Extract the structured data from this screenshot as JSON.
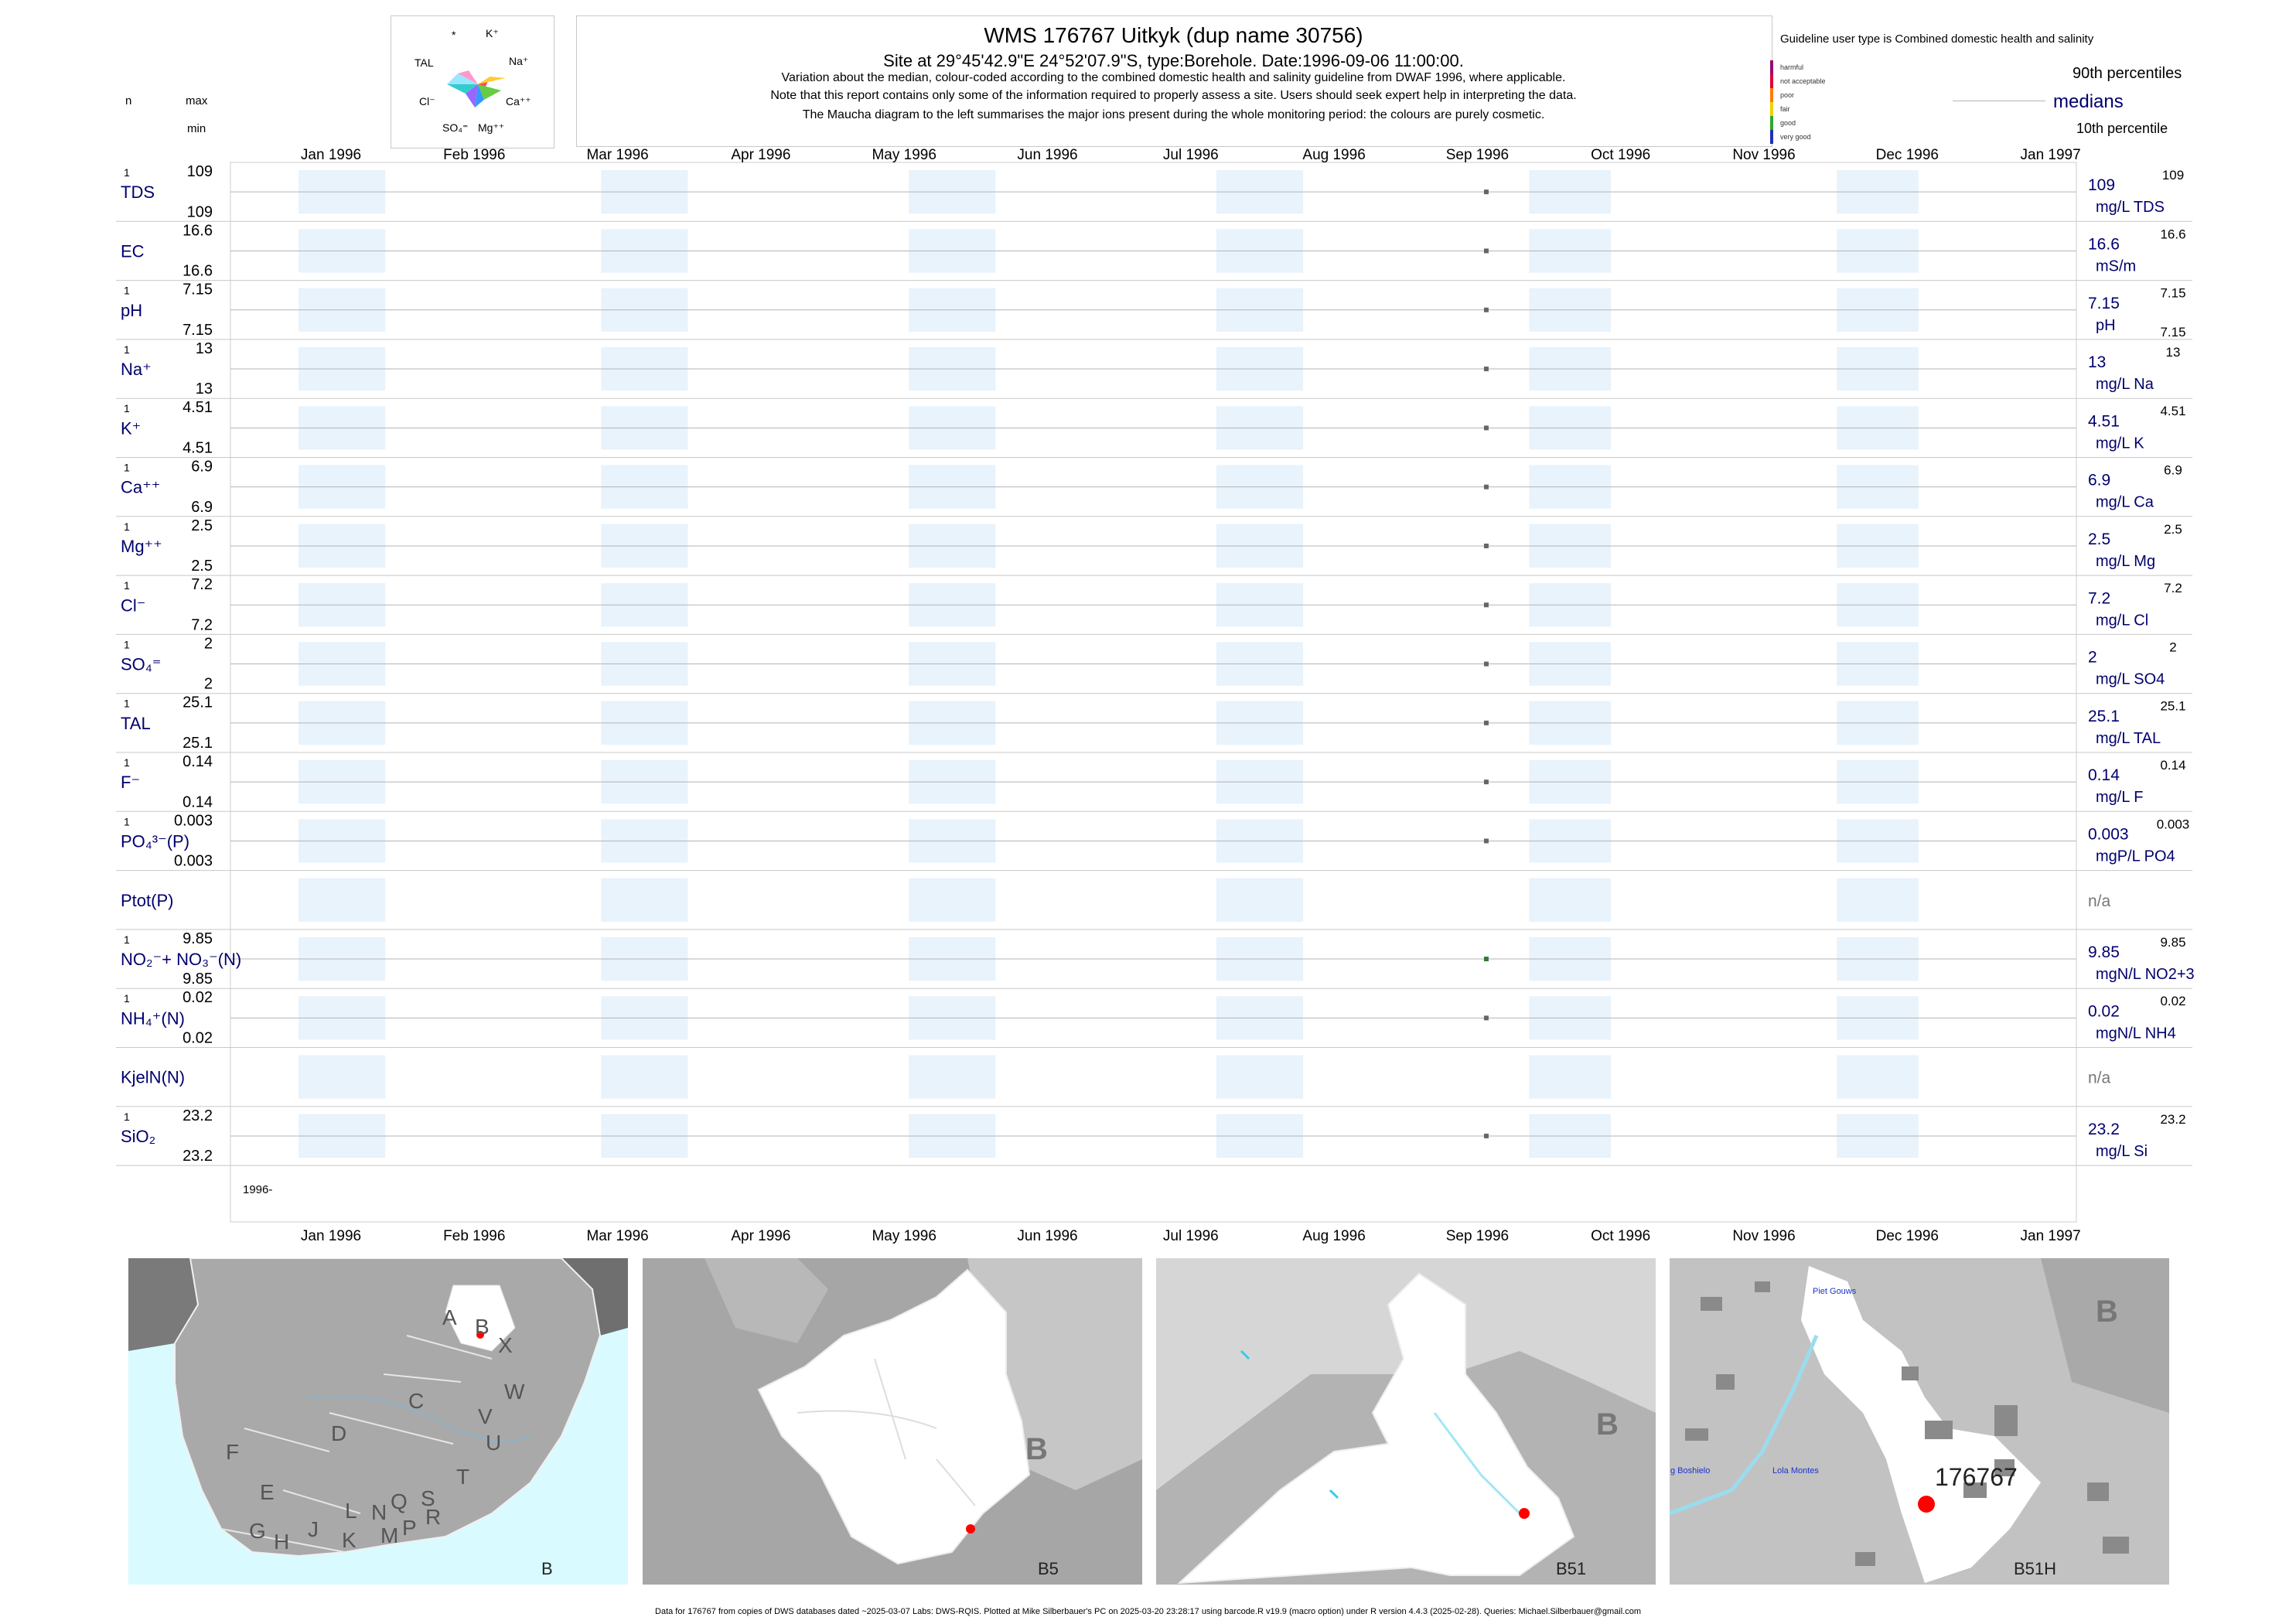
{
  "header": {
    "title": "WMS 176767  Uitkyk (dup name 30756)",
    "subtitle": "Site at 29°45'42.9\"E 24°52'07.9\"S, type:Borehole. Date:1996-09-06 11:00:00.",
    "note1": "Variation about the median,  colour-coded according to the combined domestic health and salinity guideline from DWAF 1996, where applicable.",
    "note2": "Note that this report contains only some of the information required to properly assess a site. Users should seek expert help in interpreting the data.",
    "note3": "The Maucha diagram to the left summarises the major ions present during the whole monitoring period: the colours are purely cosmetic.",
    "col_n": "n",
    "col_max": "max",
    "col_min": "min"
  },
  "maucha": {
    "labels": [
      "*",
      "K⁺",
      "TAL",
      "Na⁺",
      "Cl⁻",
      "Ca⁺⁺",
      "SO₄⁼",
      "Mg⁺⁺"
    ]
  },
  "legend": {
    "title": "Guideline user type is Combined domestic health and salinity",
    "levels": [
      "harmful",
      "not acceptable",
      "poor",
      "fair",
      "good",
      "very good"
    ],
    "level_colors": [
      "#9b0d6e",
      "#e0003a",
      "#ff7a00",
      "#f5d000",
      "#2ea82e",
      "#1f2fb4"
    ],
    "p90": "90th percentiles",
    "medians": "medians",
    "p10": "10th percentile"
  },
  "axis": {
    "months": [
      "Jan 1996",
      "Feb 1996",
      "Mar 1996",
      "Apr 1996",
      "May 1996",
      "Jun 1996",
      "Jul 1996",
      "Aug 1996",
      "Sep 1996",
      "Oct 1996",
      "Nov 1996",
      "Dec 1996",
      "Jan 1997"
    ],
    "year_label": "1996-"
  },
  "chart_data": {
    "type": "scatter",
    "x_range": [
      "1996-01-01",
      "1997-01-01"
    ],
    "sample_date": "1996-09-06",
    "variables": [
      {
        "name": "TDS",
        "n": "1",
        "max": "109",
        "min": "109",
        "median": "109",
        "unit": "mg/L TDS",
        "p90": "109",
        "p10": "",
        "has_data": true,
        "dot_color": "#666666"
      },
      {
        "name": "EC",
        "n": "",
        "max": "16.6",
        "min": "16.6",
        "median": "16.6",
        "unit": "mS/m",
        "p90": "16.6",
        "p10": "",
        "has_data": true,
        "dot_color": "#666666"
      },
      {
        "name": "pH",
        "n": "1",
        "max": "7.15",
        "min": "7.15",
        "median": "7.15",
        "unit": "pH",
        "p90": "7.15",
        "p10": "7.15",
        "has_data": true,
        "dot_color": "#666666"
      },
      {
        "name": "Na⁺",
        "n": "1",
        "max": "13",
        "min": "13",
        "median": "13",
        "unit": "mg/L Na",
        "p90": "13",
        "p10": "",
        "has_data": true,
        "dot_color": "#666666"
      },
      {
        "name": "K⁺",
        "n": "1",
        "max": "4.51",
        "min": "4.51",
        "median": "4.51",
        "unit": "mg/L K",
        "p90": "4.51",
        "p10": "",
        "has_data": true,
        "dot_color": "#666666"
      },
      {
        "name": "Ca⁺⁺",
        "n": "1",
        "max": "6.9",
        "min": "6.9",
        "median": "6.9",
        "unit": "mg/L Ca",
        "p90": "6.9",
        "p10": "",
        "has_data": true,
        "dot_color": "#666666"
      },
      {
        "name": "Mg⁺⁺",
        "n": "1",
        "max": "2.5",
        "min": "2.5",
        "median": "2.5",
        "unit": "mg/L Mg",
        "p90": "2.5",
        "p10": "",
        "has_data": true,
        "dot_color": "#666666"
      },
      {
        "name": "Cl⁻",
        "n": "1",
        "max": "7.2",
        "min": "7.2",
        "median": "7.2",
        "unit": "mg/L Cl",
        "p90": "7.2",
        "p10": "",
        "has_data": true,
        "dot_color": "#666666"
      },
      {
        "name": "SO₄⁼",
        "n": "1",
        "max": "2",
        "min": "2",
        "median": "2",
        "unit": "mg/L SO4",
        "p90": "2",
        "p10": "",
        "has_data": true,
        "dot_color": "#666666"
      },
      {
        "name": "TAL",
        "n": "1",
        "max": "25.1",
        "min": "25.1",
        "median": "25.1",
        "unit": "mg/L TAL",
        "p90": "25.1",
        "p10": "",
        "has_data": true,
        "dot_color": "#666666"
      },
      {
        "name": "F⁻",
        "n": "1",
        "max": "0.14",
        "min": "0.14",
        "median": "0.14",
        "unit": "mg/L F",
        "p90": "0.14",
        "p10": "",
        "has_data": true,
        "dot_color": "#666666"
      },
      {
        "name": "PO₄³⁻(P)",
        "n": "1",
        "max": "0.003",
        "min": "0.003",
        "median": "0.003",
        "unit": "mgP/L PO4",
        "p90": "0.003",
        "p10": "",
        "has_data": true,
        "dot_color": "#666666"
      },
      {
        "name": "Ptot(P)",
        "n": "",
        "max": "",
        "min": "",
        "median": "n/a",
        "unit": "",
        "p90": "",
        "p10": "",
        "has_data": false,
        "dot_color": "#666666"
      },
      {
        "name": "NO₂⁻+ NO₃⁻(N)",
        "n": "1",
        "max": "9.85",
        "min": "9.85",
        "median": "9.85",
        "unit": "mgN/L NO2+3",
        "p90": "9.85",
        "p10": "",
        "has_data": true,
        "dot_color": "#2e7d32"
      },
      {
        "name": "NH₄⁺(N)",
        "n": "1",
        "max": "0.02",
        "min": "0.02",
        "median": "0.02",
        "unit": "mgN/L NH4",
        "p90": "0.02",
        "p10": "",
        "has_data": true,
        "dot_color": "#666666"
      },
      {
        "name": "KjelN(N)",
        "n": "",
        "max": "",
        "min": "",
        "median": "n/a",
        "unit": "",
        "p90": "",
        "p10": "",
        "has_data": false,
        "dot_color": "#666666"
      },
      {
        "name": "SiO₂",
        "n": "1",
        "max": "23.2",
        "min": "23.2",
        "median": "23.2",
        "unit": "mg/L Si",
        "p90": "23.2",
        "p10": "",
        "has_data": true,
        "dot_color": "#666666"
      }
    ]
  },
  "maps": {
    "map1_letters": [
      "A",
      "B",
      "X",
      "C",
      "W",
      "D",
      "V",
      "U",
      "F",
      "T",
      "E",
      "L",
      "N",
      "Q",
      "S",
      "R",
      "G",
      "H",
      "J",
      "K",
      "M",
      "P"
    ],
    "map1_label": "B",
    "map2_letter": "B",
    "map2_label": "B5",
    "map3_letter": "B",
    "map3_label": "B51",
    "map4_letter": "B",
    "map4_label": "B51H",
    "map4_site": "176767",
    "map4_town1": "Piet Gouws",
    "map4_town2": "Lola Montes",
    "map4_town3": "g Boshielo"
  },
  "footer": "Data for 176767 from copies of DWS databases dated ~2025-03-07 Labs: DWS-RQIS. Plotted at Mike Silberbauer's PC on 2025-03-20 23:28:17 using barcode.R v19.9 (macro option) under R version 4.4.3 (2025-02-28). Queries: Michael.Silberbauer@gmail.com"
}
